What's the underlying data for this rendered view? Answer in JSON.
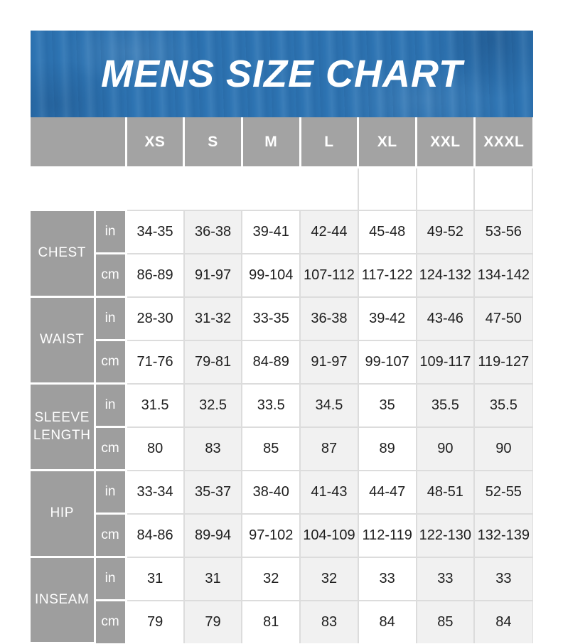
{
  "banner": {
    "title": "MENS SIZE CHART"
  },
  "chart_data": {
    "type": "table",
    "title": "MENS SIZE CHART",
    "size_columns": [
      "XS",
      "S",
      "M",
      "L",
      "XL",
      "XXL",
      "XXXL"
    ],
    "unit_labels": [
      "in",
      "cm"
    ],
    "measurements": [
      {
        "label": "CHEST",
        "in": [
          "34-35",
          "36-38",
          "39-41",
          "42-44",
          "45-48",
          "49-52",
          "53-56"
        ],
        "cm": [
          "86-89",
          "91-97",
          "99-104",
          "107-112",
          "117-122",
          "124-132",
          "134-142"
        ]
      },
      {
        "label": "WAIST",
        "in": [
          "28-30",
          "31-32",
          "33-35",
          "36-38",
          "39-42",
          "43-46",
          "47-50"
        ],
        "cm": [
          "71-76",
          "79-81",
          "84-89",
          "91-97",
          "99-107",
          "109-117",
          "119-127"
        ]
      },
      {
        "label": "SLEEVE LENGTH",
        "in": [
          "31.5",
          "32.5",
          "33.5",
          "34.5",
          "35",
          "35.5",
          "35.5"
        ],
        "cm": [
          "80",
          "83",
          "85",
          "87",
          "89",
          "90",
          "90"
        ]
      },
      {
        "label": "HIP",
        "in": [
          "33-34",
          "35-37",
          "38-40",
          "41-43",
          "44-47",
          "48-51",
          "52-55"
        ],
        "cm": [
          "84-86",
          "89-94",
          "97-102",
          "104-109",
          "112-119",
          "122-130",
          "132-139"
        ]
      },
      {
        "label": "INSEAM",
        "in": [
          "31",
          "31",
          "32",
          "32",
          "33",
          "33",
          "33"
        ],
        "cm": [
          "79",
          "79",
          "81",
          "83",
          "84",
          "85",
          "84"
        ]
      }
    ],
    "layout": {
      "tinted_columns": [
        "S",
        "L",
        "XXL",
        "XXXL"
      ],
      "legend": "none",
      "grid": "light-gray cell grid in value area, white separators in gray header/label cells"
    }
  },
  "colors": {
    "banner_blue": "#2e75b4",
    "header_gray": "#a3a3a3",
    "label_gray": "#9e9e9e",
    "tint_gray": "#f1f1f1",
    "grid_line": "#dcdcdc",
    "text_dark": "#1e1e1e",
    "text_white": "#ffffff"
  }
}
